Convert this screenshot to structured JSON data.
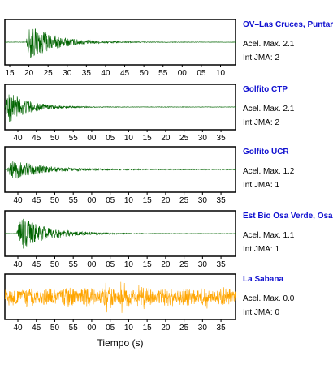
{
  "chart_data": {
    "type": "line",
    "xlabel": "Tiempo (s)",
    "panels": [
      {
        "station": "OV–Las Cruces, Puntar",
        "acel_label": "Acel. Max. 2.1",
        "jma_label": "Int JMA: 2",
        "color": "#006400",
        "ticks": [
          "15",
          "20",
          "25",
          "30",
          "35",
          "40",
          "45",
          "50",
          "55",
          "00",
          "05",
          "10"
        ],
        "onset": 0.09,
        "peak": 0.95,
        "decay": 9,
        "noise": 0.01
      },
      {
        "station": "Golfito CTP",
        "acel_label": "Acel. Max. 2.1",
        "jma_label": "Int JMA: 2",
        "color": "#006400",
        "ticks": [
          "40",
          "45",
          "50",
          "55",
          "00",
          "05",
          "10",
          "15",
          "20",
          "25",
          "30",
          "35"
        ],
        "onset": 0.0,
        "peak": 0.95,
        "decay": 12,
        "noise": 0.01
      },
      {
        "station": "Golfito UCR",
        "acel_label": "Acel. Max. 1.2",
        "jma_label": "Int JMA: 1",
        "color": "#006400",
        "ticks": [
          "40",
          "45",
          "50",
          "55",
          "00",
          "05",
          "10",
          "15",
          "20",
          "25",
          "30",
          "35"
        ],
        "onset": 0.01,
        "peak": 0.55,
        "decay": 8,
        "noise": 0.02
      },
      {
        "station": "Est Bio Osa Verde, Osa",
        "acel_label": "Acel. Max. 1.1",
        "jma_label": "Int JMA: 1",
        "color": "#006400",
        "ticks": [
          "40",
          "45",
          "50",
          "55",
          "00",
          "05",
          "10",
          "15",
          "20",
          "25",
          "30",
          "35"
        ],
        "onset": 0.05,
        "peak": 0.95,
        "decay": 9,
        "noise": 0.01
      },
      {
        "station": "La Sabana",
        "acel_label": "Acel. Max. 0.0",
        "jma_label": "Int JMA: 0",
        "color": "#ffa500",
        "ticks": [
          "40",
          "45",
          "50",
          "55",
          "00",
          "05",
          "10",
          "15",
          "20",
          "25",
          "30",
          "35"
        ],
        "onset": 0.0,
        "peak": 0.0,
        "decay": 0,
        "noise": 0.45
      }
    ]
  }
}
